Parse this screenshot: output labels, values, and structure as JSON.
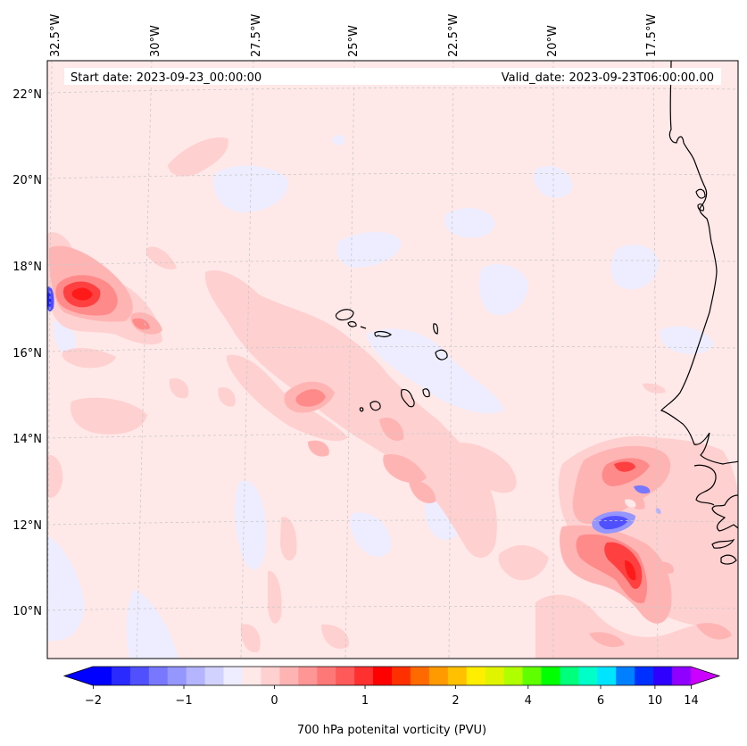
{
  "map": {
    "start_date": "Start date: 2023-09-23_00:00:00",
    "valid_date": "Valid_date: 2023-09-23T06:00:00.00",
    "lon_labels": [
      "32.5°W",
      "30°W",
      "27.5°W",
      "25°W",
      "22.5°W",
      "20°W",
      "17.5°W"
    ],
    "lat_labels": [
      "22°N",
      "20°N",
      "18°N",
      "16°N",
      "14°N",
      "12°N",
      "10°N"
    ],
    "field_name": "700 hPa potenital vorticity (PVU)"
  },
  "colorbar": {
    "tick_labels": [
      "−2",
      "−1",
      "0",
      "1",
      "2",
      "4",
      "6",
      "10",
      "14"
    ],
    "colors": [
      "#0000ff",
      "#2a2aff",
      "#5050ff",
      "#7878ff",
      "#9696ff",
      "#b4b4ff",
      "#d2d2ff",
      "#ededff",
      "#ffe8e8",
      "#ffd0d0",
      "#ffb4b4",
      "#ff9696",
      "#ff7878",
      "#ff5a5a",
      "#ff3030",
      "#ff0000",
      "#ff3000",
      "#ff6a00",
      "#ff9a00",
      "#ffc000",
      "#ffee00",
      "#e0f400",
      "#b0ff00",
      "#60ff00",
      "#00ff00",
      "#00ff7a",
      "#00ffc8",
      "#00e4ff",
      "#0080ff",
      "#0030ff",
      "#3000ff",
      "#9000ff"
    ],
    "under_color": "#0000ff",
    "over_color": "#cc00ff"
  },
  "palette": {
    "background": "#ffe8e8",
    "light_pink": "#ffd0d0",
    "pink": "#ffb4b4",
    "mid_red": "#ff8a8a",
    "red": "#ff5a5a",
    "strong_red": "#ff2020",
    "pale_blue": "#ededff",
    "light_blue": "#b4b4ff",
    "blue": "#6464ff",
    "coast": "#000000"
  }
}
